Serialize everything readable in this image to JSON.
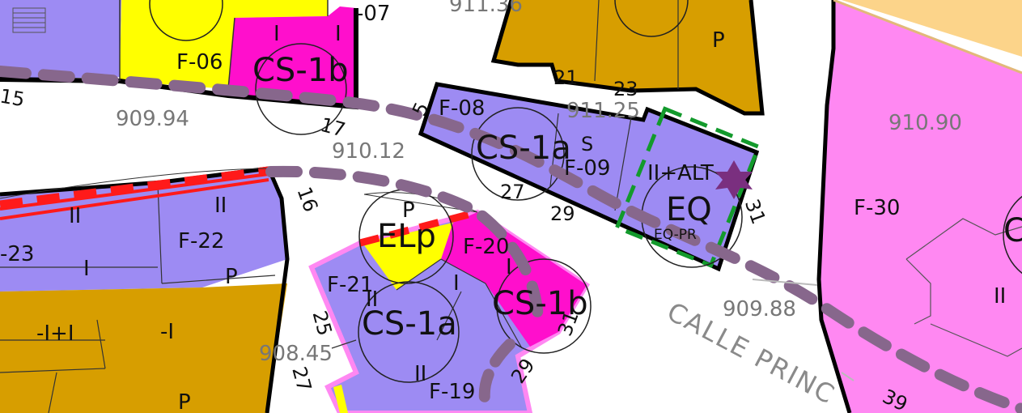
{
  "colors": {
    "residential": "#9d8bf3",
    "commercial": "#ff0fcc",
    "mixed": "#ff88f2",
    "private_green": "#d79e00",
    "public_space": "#ffff00",
    "road_band": "#fcd48a",
    "route_dash": "#87678c",
    "equipment_outline": "#139a2c",
    "boundary_red": "#ff1a1a",
    "heritage_star": "#7a2f7f"
  },
  "zones": {
    "cs1b_top": "CS-1b",
    "cs1a_mid": "CS-1a",
    "cs1a_bottom": "CS-1a",
    "cs1b_bottom": "CS-1b",
    "elp": "ELp",
    "eq": "EQ",
    "eq_sub": "EQ-PR",
    "alt": "II+ALT",
    "s_mark": "S"
  },
  "parcels": {
    "f06": "F-06",
    "f08": "F-08",
    "f09": "F-09",
    "f19": "F-19",
    "f20": "F-20",
    "f21": "F-21",
    "f22": "F-22",
    "f23": "-23",
    "f30": "F-30",
    "f07": "-07"
  },
  "house_numbers": {
    "n15": "15",
    "n5": "5",
    "n17": "17",
    "n21": "21",
    "n23": "23",
    "n16": "16",
    "n27a": "27",
    "n29a": "29",
    "n31a": "31",
    "n25": "25",
    "n27b": "27",
    "n29b": "29",
    "n31b": "31",
    "n39": "39"
  },
  "elevations": {
    "e1": "911.36",
    "e2": "909.94",
    "e3": "911.25",
    "e4": "910.12",
    "e5": "910.90",
    "e6": "909.88",
    "e7": "908.45"
  },
  "floor_marks": {
    "top_I1": "I",
    "top_I2": "I",
    "left_II": "II",
    "left_II2": "II",
    "left_I": "I",
    "left_P": "P",
    "top_P": "P",
    "bot_mixed": "-I+I",
    "bot_I": "-I",
    "bot_P": "P",
    "f21_II": "II",
    "f21_I": "I",
    "f20_I": "I",
    "f19_II": "II",
    "elp_P": "P",
    "f30_II": "II",
    "right_C": "C"
  },
  "street": {
    "name": "CALLE PRINC"
  }
}
